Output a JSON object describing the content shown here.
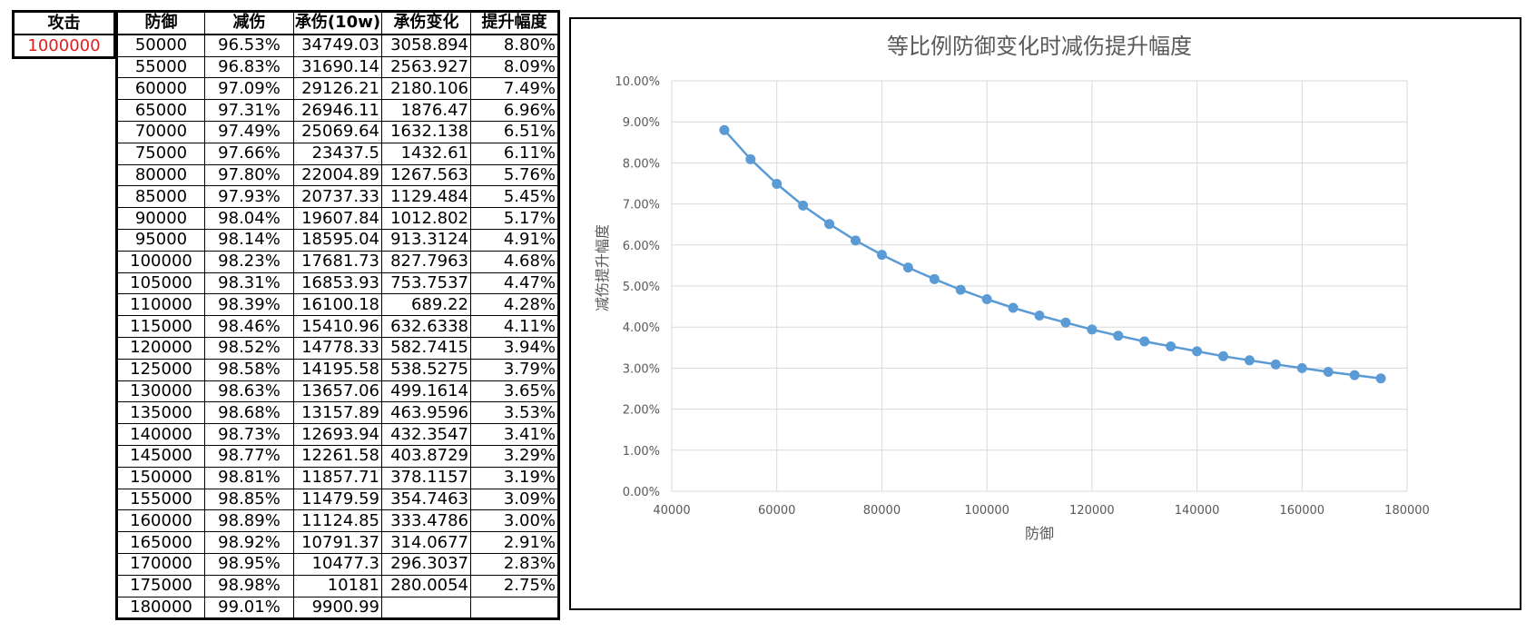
{
  "attack": {
    "label": "攻击",
    "value": "1000000"
  },
  "table": {
    "headers": [
      "防御",
      "减伤",
      "承伤(10w)",
      "承伤变化",
      "提升幅度"
    ],
    "rows": [
      [
        "50000",
        "96.53%",
        "34749.03",
        "3058.894",
        "8.80%"
      ],
      [
        "55000",
        "96.83%",
        "31690.14",
        "2563.927",
        "8.09%"
      ],
      [
        "60000",
        "97.09%",
        "29126.21",
        "2180.106",
        "7.49%"
      ],
      [
        "65000",
        "97.31%",
        "26946.11",
        "1876.47",
        "6.96%"
      ],
      [
        "70000",
        "97.49%",
        "25069.64",
        "1632.138",
        "6.51%"
      ],
      [
        "75000",
        "97.66%",
        "23437.5",
        "1432.61",
        "6.11%"
      ],
      [
        "80000",
        "97.80%",
        "22004.89",
        "1267.563",
        "5.76%"
      ],
      [
        "85000",
        "97.93%",
        "20737.33",
        "1129.484",
        "5.45%"
      ],
      [
        "90000",
        "98.04%",
        "19607.84",
        "1012.802",
        "5.17%"
      ],
      [
        "95000",
        "98.14%",
        "18595.04",
        "913.3124",
        "4.91%"
      ],
      [
        "100000",
        "98.23%",
        "17681.73",
        "827.7963",
        "4.68%"
      ],
      [
        "105000",
        "98.31%",
        "16853.93",
        "753.7537",
        "4.47%"
      ],
      [
        "110000",
        "98.39%",
        "16100.18",
        "689.22",
        "4.28%"
      ],
      [
        "115000",
        "98.46%",
        "15410.96",
        "632.6338",
        "4.11%"
      ],
      [
        "120000",
        "98.52%",
        "14778.33",
        "582.7415",
        "3.94%"
      ],
      [
        "125000",
        "98.58%",
        "14195.58",
        "538.5275",
        "3.79%"
      ],
      [
        "130000",
        "98.63%",
        "13657.06",
        "499.1614",
        "3.65%"
      ],
      [
        "135000",
        "98.68%",
        "13157.89",
        "463.9596",
        "3.53%"
      ],
      [
        "140000",
        "98.73%",
        "12693.94",
        "432.3547",
        "3.41%"
      ],
      [
        "145000",
        "98.77%",
        "12261.58",
        "403.8729",
        "3.29%"
      ],
      [
        "150000",
        "98.81%",
        "11857.71",
        "378.1157",
        "3.19%"
      ],
      [
        "155000",
        "98.85%",
        "11479.59",
        "354.7463",
        "3.09%"
      ],
      [
        "160000",
        "98.89%",
        "11124.85",
        "333.4786",
        "3.00%"
      ],
      [
        "165000",
        "98.92%",
        "10791.37",
        "314.0677",
        "2.91%"
      ],
      [
        "170000",
        "98.95%",
        "10477.3",
        "296.3037",
        "2.83%"
      ],
      [
        "175000",
        "98.98%",
        "10181",
        "280.0054",
        "2.75%"
      ],
      [
        "180000",
        "99.01%",
        "9900.99",
        "",
        ""
      ]
    ]
  },
  "chart_data": {
    "type": "line",
    "title": "等比例防御变化时减伤提升幅度",
    "xlabel": "防御",
    "ylabel": "减伤提升幅度",
    "xlim": [
      40000,
      180000
    ],
    "ylim": [
      0,
      0.1
    ],
    "x_ticks": [
      "40000",
      "60000",
      "80000",
      "100000",
      "120000",
      "140000",
      "160000",
      "180000"
    ],
    "x_tick_values": [
      40000,
      60000,
      80000,
      100000,
      120000,
      140000,
      160000,
      180000
    ],
    "y_ticks": [
      "0.00%",
      "1.00%",
      "2.00%",
      "3.00%",
      "4.00%",
      "5.00%",
      "6.00%",
      "7.00%",
      "8.00%",
      "9.00%",
      "10.00%"
    ],
    "y_tick_values": [
      0,
      0.01,
      0.02,
      0.03,
      0.04,
      0.05,
      0.06,
      0.07,
      0.08,
      0.09,
      0.1
    ],
    "grid": true,
    "marker": "circle",
    "series": [
      {
        "x": [
          50000,
          55000,
          60000,
          65000,
          70000,
          75000,
          80000,
          85000,
          90000,
          95000,
          100000,
          105000,
          110000,
          115000,
          120000,
          125000,
          130000,
          135000,
          140000,
          145000,
          150000,
          155000,
          160000,
          165000,
          170000,
          175000
        ],
        "values": [
          0.088,
          0.0809,
          0.0749,
          0.0696,
          0.0651,
          0.0611,
          0.0576,
          0.0545,
          0.0517,
          0.0491,
          0.0468,
          0.0447,
          0.0428,
          0.0411,
          0.0394,
          0.0379,
          0.0365,
          0.0353,
          0.0341,
          0.0329,
          0.0319,
          0.0309,
          0.03,
          0.0291,
          0.0283,
          0.0275
        ]
      }
    ],
    "colors": {
      "line": "#5B9BD5",
      "grid": "#D9D9D9",
      "text": "#595959"
    }
  }
}
